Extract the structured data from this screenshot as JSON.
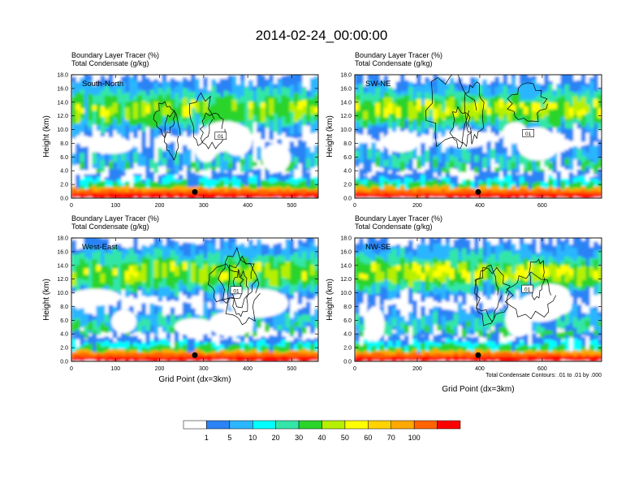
{
  "chart_data": {
    "type": "heatmap",
    "title": "2014-02-24_00:00:00",
    "fill_variable": "Boundary Layer Tracer",
    "fill_units": "(%)",
    "contour_variable": "Total Condensate",
    "contour_units": "(g/kg)",
    "contour_note": "Total Condensate Contours: .01 to .01 by .000",
    "contour_label": "01",
    "ylabel": "Height (km)",
    "xlabel": "Grid Point (dx=3km)",
    "ylim": [
      0,
      18
    ],
    "y_ticks": [
      "0.0",
      "2.0",
      "4.0",
      "6.0",
      "8.0",
      "10.0",
      "12.0",
      "14.0",
      "16.0",
      "18.0"
    ],
    "colorbar": {
      "levels": [
        "1",
        "5",
        "10",
        "20",
        "30",
        "40",
        "50",
        "60",
        "70",
        "100"
      ],
      "colors": [
        "#ffffff",
        "#2b83f5",
        "#2cb6ff",
        "#00ffff",
        "#33e6a8",
        "#2bd42b",
        "#b6f000",
        "#ffff00",
        "#ffd200",
        "#ffa800",
        "#ff6400",
        "#ff0000"
      ]
    },
    "panels": [
      {
        "name": "South-North",
        "xlim": [
          0,
          560
        ],
        "x_ticks": [
          "0",
          "100",
          "200",
          "300",
          "400",
          "500"
        ],
        "marker_x": 280,
        "show_xlabel": false
      },
      {
        "name": "SW-NE",
        "xlim": [
          0,
          790
        ],
        "x_ticks": [
          "0",
          "200",
          "400",
          "600"
        ],
        "marker_x": 395,
        "show_xlabel": false
      },
      {
        "name": "West-East",
        "xlim": [
          0,
          560
        ],
        "x_ticks": [
          "0",
          "100",
          "200",
          "300",
          "400",
          "500"
        ],
        "marker_x": 280,
        "show_xlabel": true
      },
      {
        "name": "NW-SE",
        "xlim": [
          0,
          790
        ],
        "x_ticks": [
          "0",
          "200",
          "400",
          "600"
        ],
        "marker_x": 395,
        "show_xlabel": true
      }
    ]
  }
}
